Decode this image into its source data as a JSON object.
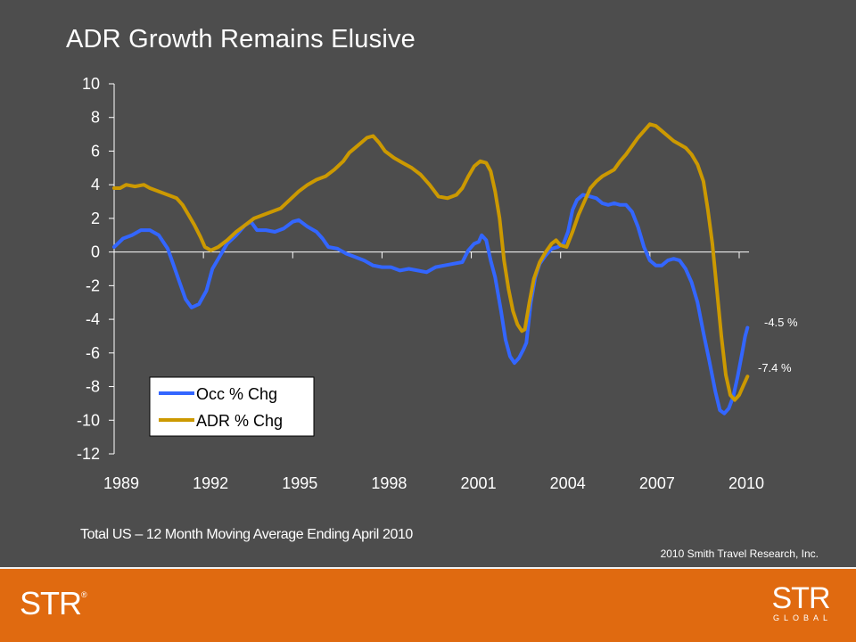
{
  "slide": {
    "title": "ADR Growth Remains Elusive",
    "subtitle": "Total US – 12 Month Moving Average Ending April 2010",
    "copyright": "2010 Smith Travel Research, Inc.",
    "logo_left": "STR",
    "logo_left_mark": "®",
    "logo_right_main": "STR",
    "logo_right_sub": "GLOBAL"
  },
  "colors": {
    "background": "#4d4d4d",
    "plot_bg": "#4d4d4d",
    "axis": "#ffffff",
    "occ": "#3366ff",
    "adr": "#cc9900",
    "footer": "#e06a10"
  },
  "chart_data": {
    "type": "line",
    "title": "ADR Growth Remains Elusive",
    "xlabel": "",
    "ylabel": "",
    "xlim": [
      1989,
      2010.33
    ],
    "ylim": [
      -12,
      10
    ],
    "yticks": [
      10,
      8,
      6,
      4,
      2,
      0,
      -2,
      -4,
      -6,
      -8,
      -10,
      -12
    ],
    "ytick_labels": [
      "10",
      "8",
      "6",
      "4",
      "2",
      "0",
      "-2",
      "-4",
      "-6",
      "-8",
      "-10",
      "-12"
    ],
    "xticks": [
      1989,
      1992,
      1995,
      1998,
      2001,
      2004,
      2007,
      2010
    ],
    "xtick_labels": [
      "1989",
      "1992",
      "1995",
      "1998",
      "2001",
      "2004",
      "2007",
      "2010"
    ],
    "grid": false,
    "legend_position": "bottom-left",
    "series": [
      {
        "name": "Occ % Chg",
        "color": "#3366ff",
        "end_label": "-4.5 %",
        "points": [
          [
            1989.0,
            0.3
          ],
          [
            1989.3,
            0.8
          ],
          [
            1989.6,
            1.0
          ],
          [
            1989.9,
            1.3
          ],
          [
            1990.2,
            1.3
          ],
          [
            1990.5,
            1.0
          ],
          [
            1990.8,
            0.2
          ],
          [
            1991.0,
            -0.8
          ],
          [
            1991.2,
            -1.8
          ],
          [
            1991.4,
            -2.8
          ],
          [
            1991.6,
            -3.3
          ],
          [
            1991.85,
            -3.1
          ],
          [
            1992.1,
            -2.3
          ],
          [
            1992.3,
            -1.0
          ],
          [
            1992.5,
            -0.4
          ],
          [
            1992.8,
            0.5
          ],
          [
            1993.1,
            1.0
          ],
          [
            1993.4,
            1.6
          ],
          [
            1993.6,
            1.8
          ],
          [
            1993.8,
            1.3
          ],
          [
            1994.1,
            1.3
          ],
          [
            1994.4,
            1.2
          ],
          [
            1994.7,
            1.4
          ],
          [
            1995.0,
            1.8
          ],
          [
            1995.2,
            1.9
          ],
          [
            1995.5,
            1.5
          ],
          [
            1995.8,
            1.2
          ],
          [
            1996.0,
            0.8
          ],
          [
            1996.2,
            0.3
          ],
          [
            1996.5,
            0.2
          ],
          [
            1996.8,
            -0.1
          ],
          [
            1997.1,
            -0.3
          ],
          [
            1997.4,
            -0.5
          ],
          [
            1997.7,
            -0.8
          ],
          [
            1998.0,
            -0.9
          ],
          [
            1998.3,
            -0.9
          ],
          [
            1998.6,
            -1.1
          ],
          [
            1998.9,
            -1.0
          ],
          [
            1999.2,
            -1.1
          ],
          [
            1999.5,
            -1.2
          ],
          [
            1999.8,
            -0.9
          ],
          [
            2000.1,
            -0.8
          ],
          [
            2000.4,
            -0.7
          ],
          [
            2000.7,
            -0.6
          ],
          [
            2000.9,
            0.1
          ],
          [
            2001.1,
            0.5
          ],
          [
            2001.25,
            0.6
          ],
          [
            2001.35,
            1.0
          ],
          [
            2001.5,
            0.7
          ],
          [
            2001.65,
            -0.5
          ],
          [
            2001.8,
            -1.5
          ],
          [
            2002.0,
            -3.5
          ],
          [
            2002.15,
            -5.2
          ],
          [
            2002.3,
            -6.2
          ],
          [
            2002.45,
            -6.6
          ],
          [
            2002.6,
            -6.3
          ],
          [
            2002.75,
            -5.8
          ],
          [
            2002.85,
            -5.4
          ],
          [
            2003.0,
            -3.0
          ],
          [
            2003.15,
            -1.5
          ],
          [
            2003.3,
            -0.7
          ],
          [
            2003.5,
            -0.2
          ],
          [
            2003.7,
            0.2
          ],
          [
            2003.9,
            0.3
          ],
          [
            2004.1,
            0.5
          ],
          [
            2004.25,
            1.2
          ],
          [
            2004.4,
            2.5
          ],
          [
            2004.55,
            3.1
          ],
          [
            2004.75,
            3.4
          ],
          [
            2005.0,
            3.3
          ],
          [
            2005.2,
            3.2
          ],
          [
            2005.4,
            2.9
          ],
          [
            2005.6,
            2.8
          ],
          [
            2005.8,
            2.9
          ],
          [
            2006.0,
            2.8
          ],
          [
            2006.2,
            2.8
          ],
          [
            2006.4,
            2.4
          ],
          [
            2006.6,
            1.5
          ],
          [
            2006.8,
            0.3
          ],
          [
            2007.0,
            -0.5
          ],
          [
            2007.2,
            -0.8
          ],
          [
            2007.4,
            -0.8
          ],
          [
            2007.6,
            -0.5
          ],
          [
            2007.8,
            -0.4
          ],
          [
            2008.0,
            -0.5
          ],
          [
            2008.2,
            -1.0
          ],
          [
            2008.4,
            -1.8
          ],
          [
            2008.6,
            -3.0
          ],
          [
            2008.8,
            -4.8
          ],
          [
            2009.0,
            -6.5
          ],
          [
            2009.2,
            -8.3
          ],
          [
            2009.35,
            -9.4
          ],
          [
            2009.5,
            -9.6
          ],
          [
            2009.65,
            -9.3
          ],
          [
            2009.8,
            -8.6
          ],
          [
            2009.95,
            -7.4
          ],
          [
            2010.1,
            -6.0
          ],
          [
            2010.2,
            -5.0
          ],
          [
            2010.28,
            -4.5
          ]
        ]
      },
      {
        "name": "ADR % Chg",
        "color": "#cc9900",
        "end_label": "-7.4 %",
        "points": [
          [
            1989.0,
            3.8
          ],
          [
            1989.2,
            3.8
          ],
          [
            1989.4,
            4.0
          ],
          [
            1989.7,
            3.9
          ],
          [
            1990.0,
            4.0
          ],
          [
            1990.2,
            3.8
          ],
          [
            1990.5,
            3.6
          ],
          [
            1990.8,
            3.4
          ],
          [
            1991.1,
            3.2
          ],
          [
            1991.3,
            2.8
          ],
          [
            1991.5,
            2.2
          ],
          [
            1991.7,
            1.6
          ],
          [
            1991.9,
            0.9
          ],
          [
            1992.05,
            0.3
          ],
          [
            1992.25,
            0.1
          ],
          [
            1992.5,
            0.3
          ],
          [
            1992.8,
            0.7
          ],
          [
            1993.1,
            1.2
          ],
          [
            1993.4,
            1.6
          ],
          [
            1993.7,
            2.0
          ],
          [
            1994.0,
            2.2
          ],
          [
            1994.3,
            2.4
          ],
          [
            1994.6,
            2.6
          ],
          [
            1994.9,
            3.1
          ],
          [
            1995.2,
            3.6
          ],
          [
            1995.5,
            4.0
          ],
          [
            1995.8,
            4.3
          ],
          [
            1996.1,
            4.5
          ],
          [
            1996.4,
            4.9
          ],
          [
            1996.7,
            5.4
          ],
          [
            1996.9,
            5.9
          ],
          [
            1997.1,
            6.2
          ],
          [
            1997.3,
            6.5
          ],
          [
            1997.5,
            6.8
          ],
          [
            1997.7,
            6.9
          ],
          [
            1997.9,
            6.5
          ],
          [
            1998.1,
            6.0
          ],
          [
            1998.4,
            5.6
          ],
          [
            1998.7,
            5.3
          ],
          [
            1999.0,
            5.0
          ],
          [
            1999.3,
            4.6
          ],
          [
            1999.6,
            4.0
          ],
          [
            1999.9,
            3.3
          ],
          [
            2000.2,
            3.2
          ],
          [
            2000.5,
            3.4
          ],
          [
            2000.7,
            3.8
          ],
          [
            2000.9,
            4.5
          ],
          [
            2001.1,
            5.1
          ],
          [
            2001.3,
            5.4
          ],
          [
            2001.5,
            5.3
          ],
          [
            2001.65,
            4.8
          ],
          [
            2001.8,
            3.6
          ],
          [
            2001.95,
            2.0
          ],
          [
            2002.1,
            -0.5
          ],
          [
            2002.25,
            -2.2
          ],
          [
            2002.4,
            -3.5
          ],
          [
            2002.55,
            -4.3
          ],
          [
            2002.7,
            -4.7
          ],
          [
            2002.8,
            -4.6
          ],
          [
            2002.95,
            -3.0
          ],
          [
            2003.1,
            -1.6
          ],
          [
            2003.3,
            -0.6
          ],
          [
            2003.5,
            0.0
          ],
          [
            2003.7,
            0.5
          ],
          [
            2003.85,
            0.7
          ],
          [
            2004.0,
            0.4
          ],
          [
            2004.2,
            0.3
          ],
          [
            2004.4,
            1.2
          ],
          [
            2004.6,
            2.2
          ],
          [
            2004.8,
            3.0
          ],
          [
            2005.0,
            3.8
          ],
          [
            2005.2,
            4.2
          ],
          [
            2005.4,
            4.5
          ],
          [
            2005.6,
            4.7
          ],
          [
            2005.8,
            4.9
          ],
          [
            2006.0,
            5.4
          ],
          [
            2006.2,
            5.8
          ],
          [
            2006.4,
            6.3
          ],
          [
            2006.6,
            6.8
          ],
          [
            2006.8,
            7.2
          ],
          [
            2007.0,
            7.6
          ],
          [
            2007.2,
            7.5
          ],
          [
            2007.4,
            7.2
          ],
          [
            2007.6,
            6.9
          ],
          [
            2007.8,
            6.6
          ],
          [
            2008.0,
            6.4
          ],
          [
            2008.2,
            6.2
          ],
          [
            2008.4,
            5.8
          ],
          [
            2008.6,
            5.2
          ],
          [
            2008.8,
            4.2
          ],
          [
            2008.95,
            2.5
          ],
          [
            2009.1,
            0.5
          ],
          [
            2009.25,
            -2.2
          ],
          [
            2009.4,
            -5.0
          ],
          [
            2009.55,
            -7.3
          ],
          [
            2009.7,
            -8.5
          ],
          [
            2009.85,
            -8.8
          ],
          [
            2010.0,
            -8.5
          ],
          [
            2010.15,
            -7.9
          ],
          [
            2010.28,
            -7.4
          ]
        ]
      }
    ]
  }
}
